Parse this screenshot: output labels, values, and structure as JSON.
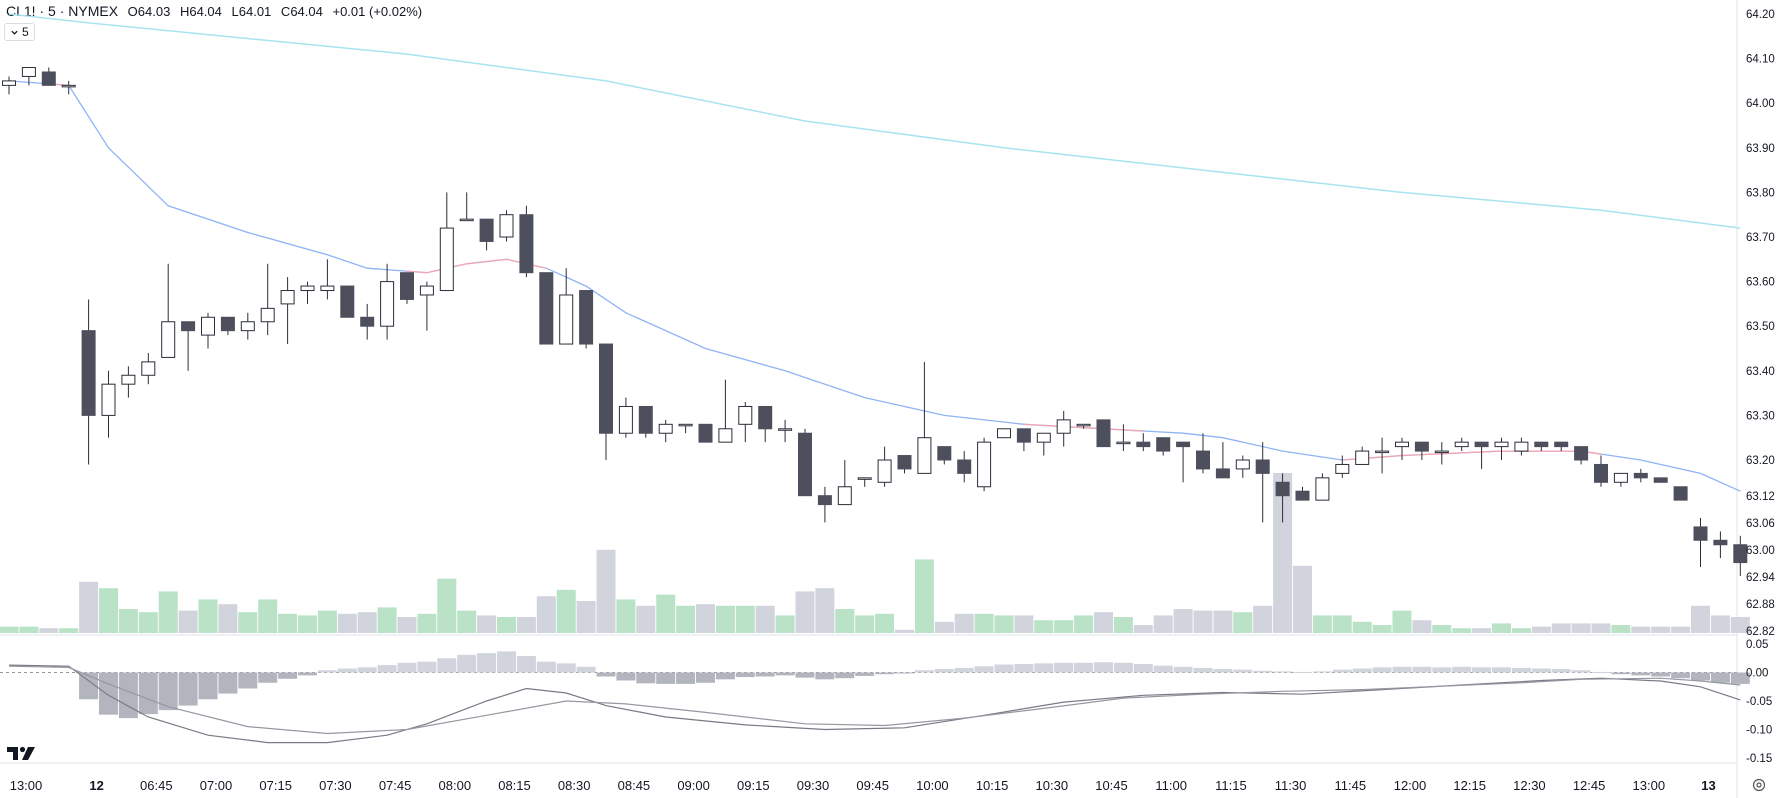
{
  "header": {
    "symbol": "CL1! · 5 · NYMEX",
    "open_label": "O",
    "open": "64.03",
    "high_label": "H",
    "high": "64.04",
    "low_label": "L",
    "low": "64.01",
    "close_label": "C",
    "close": "64.04",
    "change": "+0.01 (+0.02%)"
  },
  "interval_button": {
    "label": "5",
    "icon": "chevron-down-icon"
  },
  "logo": {
    "name": "tradingview-logo",
    "text": "TV"
  },
  "colors": {
    "up_body": "#ffffff",
    "up_border": "#2a2e39",
    "down_body": "#4d4f5c",
    "vol_up": "#b9e2c6",
    "vol_down": "#d1d4dc",
    "ma_slow": "#a8e4f0",
    "ma_fast_blue": "#8fb4f5",
    "ma_fast_red": "#f4a5ae",
    "hist_pos": "#d1d4dc",
    "hist_neg": "#b2b5be",
    "macd_line": "#787b86",
    "signal_line": "#9598a1"
  },
  "chart_data": [
    {
      "type": "candlestick",
      "title": "CL1! · 5 · NYMEX",
      "y_ticks": [
        "64.20",
        "64.10",
        "64.00",
        "63.90",
        "63.80",
        "63.70",
        "63.60",
        "63.50",
        "63.40",
        "63.30",
        "63.20",
        "63.12",
        "63.06",
        "63.00",
        "62.94",
        "62.88",
        "62.82"
      ],
      "x_ticks": [
        {
          "label": "13:00",
          "bold": false,
          "index": 0
        },
        {
          "label": "12",
          "bold": true,
          "index": 4
        },
        {
          "label": "06:45",
          "bold": false,
          "index": 7
        },
        {
          "label": "07:00",
          "bold": false,
          "index": 10
        },
        {
          "label": "07:15",
          "bold": false,
          "index": 13
        },
        {
          "label": "07:30",
          "bold": false,
          "index": 16
        },
        {
          "label": "07:45",
          "bold": false,
          "index": 19
        },
        {
          "label": "08:00",
          "bold": false,
          "index": 22
        },
        {
          "label": "08:15",
          "bold": false,
          "index": 25
        },
        {
          "label": "08:30",
          "bold": false,
          "index": 28
        },
        {
          "label": "08:45",
          "bold": false,
          "index": 31
        },
        {
          "label": "09:00",
          "bold": false,
          "index": 34
        },
        {
          "label": "09:15",
          "bold": false,
          "index": 37
        },
        {
          "label": "09:30",
          "bold": false,
          "index": 40
        },
        {
          "label": "09:45",
          "bold": false,
          "index": 43
        },
        {
          "label": "10:00",
          "bold": false,
          "index": 46
        },
        {
          "label": "10:15",
          "bold": false,
          "index": 49
        },
        {
          "label": "10:30",
          "bold": false,
          "index": 52
        },
        {
          "label": "10:45",
          "bold": false,
          "index": 55
        },
        {
          "label": "11:00",
          "bold": false,
          "index": 58
        },
        {
          "label": "11:15",
          "bold": false,
          "index": 61
        },
        {
          "label": "11:30",
          "bold": false,
          "index": 64
        },
        {
          "label": "11:45",
          "bold": false,
          "index": 67
        },
        {
          "label": "12:00",
          "bold": false,
          "index": 70
        },
        {
          "label": "12:15",
          "bold": false,
          "index": 73
        },
        {
          "label": "12:30",
          "bold": false,
          "index": 76
        },
        {
          "label": "12:45",
          "bold": false,
          "index": 79
        },
        {
          "label": "13:00",
          "bold": false,
          "index": 82
        },
        {
          "label": "13",
          "bold": true,
          "index": 85
        }
      ],
      "ylim": [
        62.82,
        64.2
      ],
      "candles": [
        [
          64.04,
          64.06,
          64.02,
          64.05
        ],
        [
          64.06,
          64.08,
          64.04,
          64.08
        ],
        [
          64.07,
          64.08,
          64.04,
          64.04
        ],
        [
          64.04,
          64.05,
          64.02,
          64.04
        ],
        [
          63.49,
          63.56,
          63.19,
          63.3
        ],
        [
          63.3,
          63.4,
          63.25,
          63.37
        ],
        [
          63.37,
          63.41,
          63.34,
          63.39
        ],
        [
          63.39,
          63.44,
          63.37,
          63.42
        ],
        [
          63.43,
          63.64,
          63.43,
          63.51
        ],
        [
          63.51,
          63.51,
          63.4,
          63.49
        ],
        [
          63.48,
          63.53,
          63.45,
          63.52
        ],
        [
          63.52,
          63.52,
          63.48,
          63.49
        ],
        [
          63.49,
          63.53,
          63.47,
          63.51
        ],
        [
          63.51,
          63.64,
          63.48,
          63.54
        ],
        [
          63.55,
          63.61,
          63.46,
          63.58
        ],
        [
          63.58,
          63.6,
          63.55,
          63.59
        ],
        [
          63.58,
          63.65,
          63.56,
          63.59
        ],
        [
          63.59,
          63.59,
          63.52,
          63.52
        ],
        [
          63.52,
          63.55,
          63.47,
          63.5
        ],
        [
          63.5,
          63.64,
          63.47,
          63.6
        ],
        [
          63.62,
          63.62,
          63.55,
          63.56
        ],
        [
          63.57,
          63.6,
          63.49,
          63.59
        ],
        [
          63.58,
          63.8,
          63.58,
          63.72
        ],
        [
          63.74,
          63.8,
          63.74,
          63.74
        ],
        [
          63.74,
          63.74,
          63.67,
          63.69
        ],
        [
          63.7,
          63.76,
          63.69,
          63.75
        ],
        [
          63.75,
          63.77,
          63.61,
          63.62
        ],
        [
          63.62,
          63.62,
          63.46,
          63.46
        ],
        [
          63.46,
          63.63,
          63.46,
          63.57
        ],
        [
          63.58,
          63.58,
          63.45,
          63.46
        ],
        [
          63.46,
          63.46,
          63.2,
          63.26
        ],
        [
          63.26,
          63.34,
          63.25,
          63.32
        ],
        [
          63.32,
          63.32,
          63.25,
          63.26
        ],
        [
          63.26,
          63.29,
          63.24,
          63.28
        ],
        [
          63.28,
          63.28,
          63.26,
          63.28
        ],
        [
          63.28,
          63.28,
          63.24,
          63.24
        ],
        [
          63.24,
          63.38,
          63.24,
          63.27
        ],
        [
          63.28,
          63.33,
          63.24,
          63.32
        ],
        [
          63.32,
          63.32,
          63.24,
          63.27
        ],
        [
          63.27,
          63.29,
          63.24,
          63.27
        ],
        [
          63.26,
          63.27,
          63.12,
          63.12
        ],
        [
          63.12,
          63.14,
          63.06,
          63.1
        ],
        [
          63.1,
          63.2,
          63.1,
          63.14
        ],
        [
          63.16,
          63.16,
          63.14,
          63.16
        ],
        [
          63.15,
          63.23,
          63.14,
          63.2
        ],
        [
          63.21,
          63.21,
          63.17,
          63.18
        ],
        [
          63.17,
          63.42,
          63.17,
          63.25
        ],
        [
          63.23,
          63.23,
          63.19,
          63.2
        ],
        [
          63.2,
          63.22,
          63.15,
          63.17
        ],
        [
          63.14,
          63.25,
          63.13,
          63.24
        ],
        [
          63.25,
          63.27,
          63.25,
          63.27
        ],
        [
          63.27,
          63.27,
          63.22,
          63.24
        ],
        [
          63.24,
          63.26,
          63.21,
          63.26
        ],
        [
          63.26,
          63.31,
          63.23,
          63.29
        ],
        [
          63.28,
          63.28,
          63.27,
          63.28
        ],
        [
          63.29,
          63.29,
          63.23,
          63.23
        ],
        [
          63.24,
          63.28,
          63.22,
          63.24
        ],
        [
          63.24,
          63.26,
          63.22,
          63.23
        ],
        [
          63.25,
          63.25,
          63.21,
          63.22
        ],
        [
          63.24,
          63.24,
          63.15,
          63.23
        ],
        [
          63.22,
          63.26,
          63.17,
          63.18
        ],
        [
          63.18,
          63.24,
          63.16,
          63.16
        ],
        [
          63.18,
          63.21,
          63.16,
          63.2
        ],
        [
          63.2,
          63.24,
          63.06,
          63.17
        ],
        [
          63.15,
          63.17,
          63.06,
          63.12
        ],
        [
          63.13,
          63.14,
          63.11,
          63.11
        ],
        [
          63.11,
          63.17,
          63.11,
          63.16
        ],
        [
          63.17,
          63.21,
          63.16,
          63.19
        ],
        [
          63.19,
          63.23,
          63.19,
          63.22
        ],
        [
          63.22,
          63.25,
          63.17,
          63.22
        ],
        [
          63.23,
          63.25,
          63.2,
          63.24
        ],
        [
          63.24,
          63.24,
          63.2,
          63.22
        ],
        [
          63.22,
          63.24,
          63.19,
          63.22
        ],
        [
          63.23,
          63.25,
          63.22,
          63.24
        ],
        [
          63.24,
          63.24,
          63.18,
          63.23
        ],
        [
          63.23,
          63.25,
          63.2,
          63.24
        ],
        [
          63.22,
          63.25,
          63.21,
          63.24
        ],
        [
          63.24,
          63.24,
          63.22,
          63.23
        ],
        [
          63.24,
          63.24,
          63.22,
          63.23
        ],
        [
          63.23,
          63.23,
          63.19,
          63.2
        ],
        [
          63.19,
          63.21,
          63.14,
          63.15
        ],
        [
          63.15,
          63.17,
          63.14,
          63.17
        ],
        [
          63.17,
          63.18,
          63.15,
          63.16
        ],
        [
          63.16,
          63.16,
          63.15,
          63.15
        ],
        [
          63.14,
          63.14,
          63.11,
          63.11
        ],
        [
          63.05,
          63.07,
          62.96,
          63.02
        ],
        [
          63.02,
          63.04,
          62.98,
          63.01
        ],
        [
          63.01,
          63.03,
          62.94,
          62.97
        ]
      ],
      "volume_relative": [
        4,
        4,
        3,
        3,
        32,
        28,
        15,
        13,
        26,
        14,
        21,
        18,
        13,
        21,
        12,
        11,
        14,
        12,
        13,
        16,
        10,
        12,
        34,
        14,
        11,
        10,
        10,
        23,
        27,
        20,
        52,
        21,
        17,
        24,
        17,
        18,
        17,
        17,
        17,
        11,
        26,
        28,
        15,
        11,
        12,
        2,
        46,
        7,
        12,
        12,
        11,
        11,
        8,
        8,
        11,
        13,
        10,
        5,
        11,
        15,
        14,
        14,
        13,
        17,
        100,
        42,
        11,
        11,
        7,
        5,
        14,
        8,
        5,
        3,
        3,
        6,
        3,
        4,
        6,
        6,
        6,
        5,
        4,
        4,
        4,
        17,
        11,
        10
      ],
      "ma_slow": [
        [
          0,
          64.2
        ],
        [
          4,
          64.18
        ],
        [
          20,
          64.11
        ],
        [
          30,
          64.05
        ],
        [
          40,
          63.96
        ],
        [
          50,
          63.9
        ],
        [
          60,
          63.85
        ],
        [
          70,
          63.8
        ],
        [
          80,
          63.76
        ],
        [
          87,
          63.72
        ]
      ],
      "ma_fast": [
        [
          0,
          64.05
        ],
        [
          3,
          64.04
        ],
        [
          5,
          63.9
        ],
        [
          8,
          63.77
        ],
        [
          12,
          63.71
        ],
        [
          16,
          63.66
        ],
        [
          18,
          63.63
        ],
        [
          21,
          63.62
        ],
        [
          23,
          63.64
        ],
        [
          25,
          63.65
        ],
        [
          27,
          63.63
        ],
        [
          29,
          63.59
        ],
        [
          31,
          63.53
        ],
        [
          35,
          63.45
        ],
        [
          39,
          63.4
        ],
        [
          43,
          63.34
        ],
        [
          47,
          63.3
        ],
        [
          51,
          63.28
        ],
        [
          55,
          63.27
        ],
        [
          59,
          63.26
        ],
        [
          61,
          63.25
        ],
        [
          64,
          63.22
        ],
        [
          67,
          63.2
        ],
        [
          70,
          63.21
        ],
        [
          75,
          63.22
        ],
        [
          79,
          63.22
        ],
        [
          82,
          63.2
        ],
        [
          85,
          63.17
        ],
        [
          87,
          63.13
        ]
      ],
      "ma_fast_red_ranges": [
        [
          2,
          3
        ],
        [
          20,
          27
        ],
        [
          51,
          57
        ],
        [
          67,
          80
        ]
      ]
    },
    {
      "type": "macd",
      "y_ticks": [
        "0.05",
        "0.00",
        "-0.05",
        "-0.10",
        "-0.15"
      ],
      "ylim": [
        -0.15,
        0.05
      ],
      "histogram": [
        0,
        0,
        0,
        0,
        -0.047,
        -0.074,
        -0.08,
        -0.073,
        -0.066,
        -0.058,
        -0.047,
        -0.037,
        -0.028,
        -0.018,
        -0.011,
        -0.005,
        0.004,
        0.007,
        0.009,
        0.013,
        0.017,
        0.019,
        0.025,
        0.031,
        0.034,
        0.037,
        0.029,
        0.019,
        0.016,
        0.01,
        -0.007,
        -0.014,
        -0.019,
        -0.02,
        -0.02,
        -0.018,
        -0.012,
        -0.008,
        -0.007,
        -0.005,
        -0.009,
        -0.012,
        -0.01,
        -0.006,
        -0.003,
        -0.001,
        0.004,
        0.006,
        0.008,
        0.011,
        0.014,
        0.015,
        0.016,
        0.017,
        0.017,
        0.018,
        0.017,
        0.015,
        0.012,
        0.01,
        0.008,
        0.006,
        0.005,
        0.003,
        0.002,
        0.001,
        0.002,
        0.005,
        0.007,
        0.009,
        0.01,
        0.01,
        0.009,
        0.01,
        0.009,
        0.009,
        0.008,
        0.007,
        0.006,
        0.004,
        0.001,
        -0.003,
        -0.005,
        -0.007,
        -0.01,
        -0.014,
        -0.018,
        -0.02
      ],
      "macd_line": [
        [
          0,
          0.013
        ],
        [
          3,
          0.011
        ],
        [
          5,
          -0.04
        ],
        [
          7,
          -0.078
        ],
        [
          10,
          -0.11
        ],
        [
          13,
          -0.123
        ],
        [
          16,
          -0.123
        ],
        [
          19,
          -0.11
        ],
        [
          21,
          -0.09
        ],
        [
          24,
          -0.05
        ],
        [
          26,
          -0.028
        ],
        [
          28,
          -0.036
        ],
        [
          30,
          -0.058
        ],
        [
          33,
          -0.078
        ],
        [
          37,
          -0.092
        ],
        [
          41,
          -0.1
        ],
        [
          45,
          -0.097
        ],
        [
          49,
          -0.075
        ],
        [
          53,
          -0.052
        ],
        [
          57,
          -0.04
        ],
        [
          61,
          -0.035
        ],
        [
          65,
          -0.038
        ],
        [
          69,
          -0.03
        ],
        [
          73,
          -0.022
        ],
        [
          77,
          -0.014
        ],
        [
          80,
          -0.01
        ],
        [
          83,
          -0.015
        ],
        [
          85,
          -0.025
        ],
        [
          87,
          -0.048
        ]
      ],
      "signal_line": [
        [
          0,
          0.011
        ],
        [
          3,
          0.009
        ],
        [
          5,
          -0.02
        ],
        [
          8,
          -0.06
        ],
        [
          12,
          -0.095
        ],
        [
          16,
          -0.107
        ],
        [
          20,
          -0.1
        ],
        [
          24,
          -0.075
        ],
        [
          28,
          -0.05
        ],
        [
          31,
          -0.055
        ],
        [
          35,
          -0.07
        ],
        [
          40,
          -0.09
        ],
        [
          44,
          -0.093
        ],
        [
          48,
          -0.08
        ],
        [
          52,
          -0.063
        ],
        [
          56,
          -0.045
        ],
        [
          60,
          -0.038
        ],
        [
          64,
          -0.033
        ],
        [
          68,
          -0.03
        ],
        [
          72,
          -0.024
        ],
        [
          76,
          -0.018
        ],
        [
          79,
          -0.012
        ],
        [
          83,
          -0.01
        ],
        [
          85,
          -0.015
        ],
        [
          87,
          -0.022
        ]
      ]
    }
  ]
}
